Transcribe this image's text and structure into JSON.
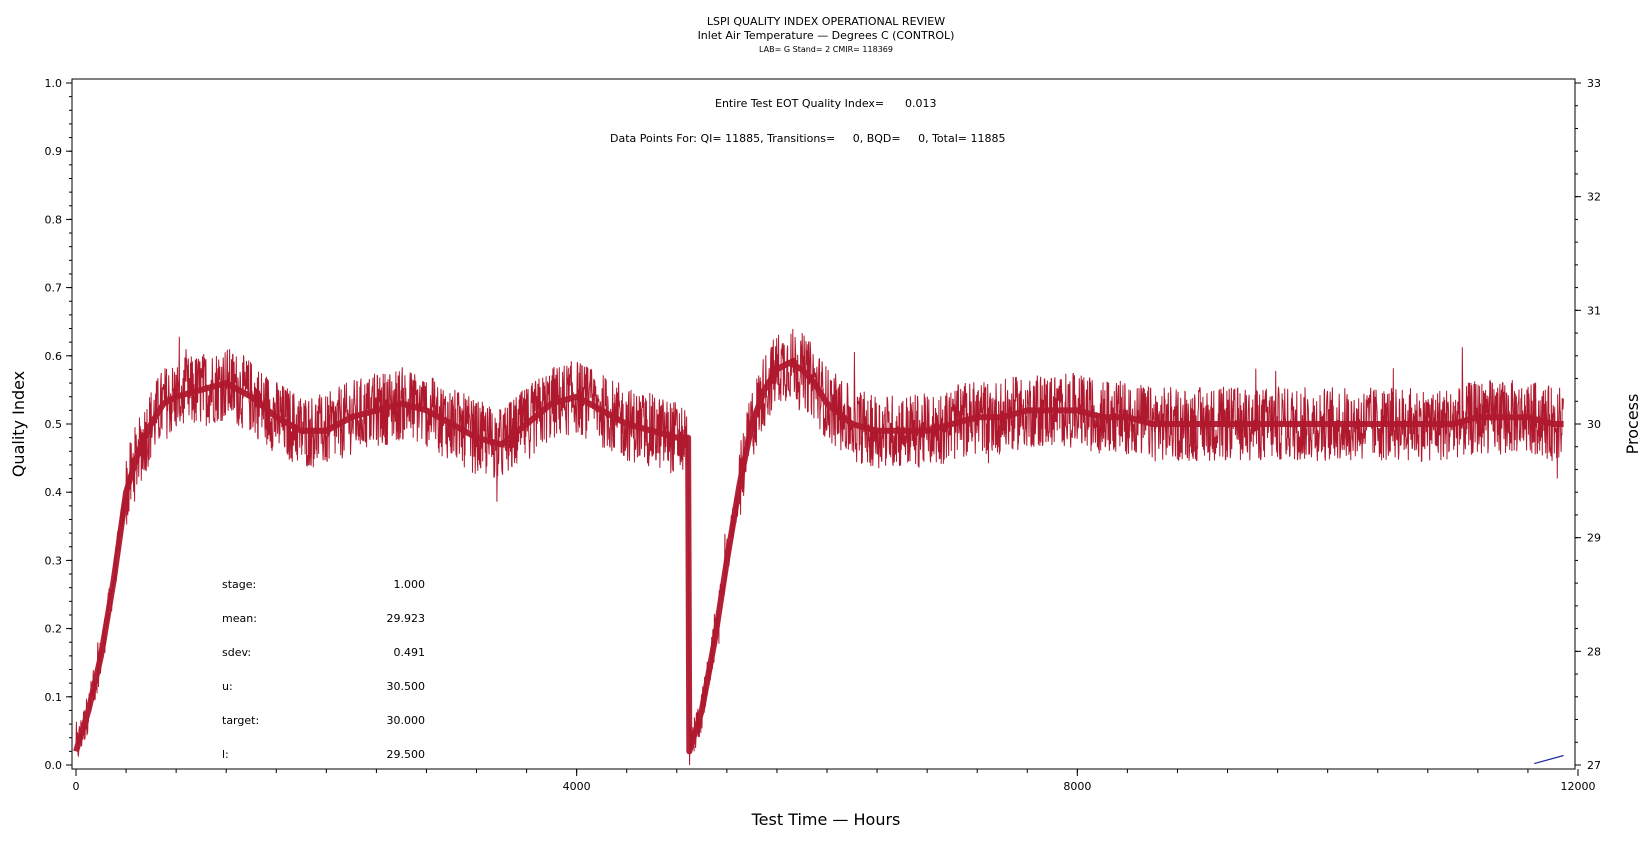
{
  "chart_data": {
    "type": "line",
    "title": "LSPI QUALITY INDEX OPERATIONAL REVIEW",
    "subtitle": "Inlet Air Temperature — Degrees C (CONTROL)",
    "subtitle2": "LAB= G Stand= 2 CMIR= 118369",
    "xlabel": "Test Time — Hours",
    "ylabel": "Quality Index",
    "y2label": "Process",
    "xlim": [
      0,
      12000
    ],
    "ylim": [
      0,
      1.0
    ],
    "y2lim": [
      27,
      33
    ],
    "x_ticks": [
      "0",
      "4000",
      "8000",
      "12000"
    ],
    "y_ticks": [
      "0.0",
      "0.1",
      "0.2",
      "0.3",
      "0.4",
      "0.5",
      "0.6",
      "0.7",
      "0.8",
      "0.9",
      "1.0"
    ],
    "y2_ticks": [
      "27",
      "28",
      "29",
      "30",
      "31",
      "32",
      "33"
    ],
    "grid": false,
    "annotations": {
      "eot_label": "Entire Test EOT Quality Index=",
      "eot_value": "0.013",
      "points_text": "Data Points For: QI= 11885, Transitions=     0, BQD=     0, Total= 11885"
    },
    "stats": [
      {
        "label": "stage:",
        "value": "1.000"
      },
      {
        "label": "mean:",
        "value": "29.923"
      },
      {
        "label": "sdev:",
        "value": "0.491"
      },
      {
        "label": "u:",
        "value": "30.500"
      },
      {
        "label": "target:",
        "value": "30.000"
      },
      {
        "label": "l:",
        "value": "29.500"
      }
    ],
    "series": [
      {
        "color": "#b0182e",
        "axis": "quality_index",
        "x": [
          0,
          100,
          200,
          300,
          400,
          500,
          600,
          700,
          800,
          1000,
          1200,
          1400,
          1600,
          1800,
          2000,
          2200,
          2400,
          2600,
          2800,
          3000,
          3200,
          3400,
          3600,
          3800,
          4000,
          4200,
          4400,
          4600,
          4800,
          4890,
          4900,
          5000,
          5100,
          5200,
          5300,
          5400,
          5500,
          5600,
          5700,
          5800,
          5900,
          6000,
          6200,
          6400,
          6600,
          6800,
          7000,
          7200,
          7400,
          7600,
          7800,
          8000,
          8200,
          8400,
          8600,
          8800,
          9000,
          9200,
          9400,
          9600,
          9800,
          10000,
          10200,
          10400,
          10600,
          10800,
          11000,
          11200,
          11400,
          11600,
          11800,
          11885
        ],
        "y": [
          0.02,
          0.08,
          0.16,
          0.27,
          0.4,
          0.46,
          0.5,
          0.53,
          0.54,
          0.55,
          0.56,
          0.54,
          0.51,
          0.49,
          0.49,
          0.51,
          0.52,
          0.53,
          0.52,
          0.5,
          0.48,
          0.47,
          0.5,
          0.53,
          0.54,
          0.52,
          0.5,
          0.49,
          0.48,
          0.48,
          0.02,
          0.08,
          0.18,
          0.3,
          0.41,
          0.5,
          0.55,
          0.58,
          0.59,
          0.58,
          0.56,
          0.53,
          0.5,
          0.49,
          0.49,
          0.49,
          0.5,
          0.51,
          0.51,
          0.52,
          0.52,
          0.52,
          0.51,
          0.51,
          0.5,
          0.5,
          0.5,
          0.5,
          0.5,
          0.5,
          0.5,
          0.5,
          0.5,
          0.5,
          0.5,
          0.5,
          0.5,
          0.51,
          0.51,
          0.51,
          0.5,
          0.5
        ]
      },
      {
        "color": "#1f2a9e",
        "axis": "quality_index",
        "x": [
          11650,
          11885
        ],
        "y": [
          0.002,
          0.014
        ]
      }
    ]
  },
  "colors": {
    "series_red": "#b0182e",
    "series_blue": "#1f2a9e",
    "axis": "#000000"
  }
}
